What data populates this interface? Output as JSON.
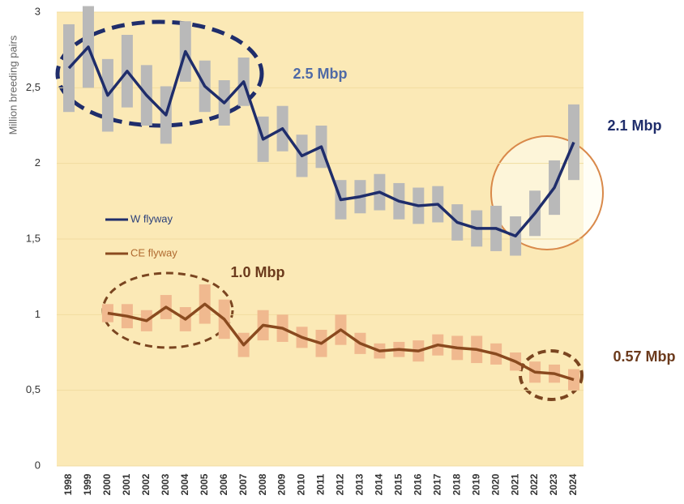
{
  "chart_data": {
    "type": "line",
    "y_axis_label": "Million breeding pairs",
    "categories": [
      "1998",
      "1999",
      "2000",
      "2001",
      "2002",
      "2003",
      "2004",
      "2005",
      "2006",
      "2007",
      "2008",
      "2009",
      "2010",
      "2011",
      "2012",
      "2013",
      "2014",
      "2015",
      "2016",
      "2017",
      "2018",
      "2019",
      "2020",
      "2021",
      "2022",
      "2023",
      "2024"
    ],
    "ylim": [
      0,
      3
    ],
    "yticks": [
      {
        "value": 0,
        "label": "0"
      },
      {
        "value": 0.5,
        "label": "0,5"
      },
      {
        "value": 1,
        "label": "1"
      },
      {
        "value": 1.5,
        "label": "1,5"
      },
      {
        "value": 2,
        "label": "2"
      },
      {
        "value": 2.5,
        "label": "2,5"
      },
      {
        "value": 3,
        "label": "3"
      }
    ],
    "grid": true,
    "series": [
      {
        "name": "W flyway",
        "color": "#1f2d6b",
        "error_color": "#b9b9b9",
        "values": [
          2.63,
          2.77,
          2.45,
          2.61,
          2.45,
          2.32,
          2.74,
          2.51,
          2.4,
          2.54,
          2.16,
          2.23,
          2.05,
          2.11,
          1.76,
          1.78,
          1.81,
          1.75,
          1.72,
          1.73,
          1.61,
          1.57,
          1.57,
          1.52,
          1.67,
          1.84,
          2.14
        ],
        "errors": [
          0.29,
          0.27,
          0.24,
          0.24,
          0.2,
          0.19,
          0.2,
          0.17,
          0.15,
          0.16,
          0.15,
          0.15,
          0.14,
          0.14,
          0.13,
          0.11,
          0.12,
          0.12,
          0.12,
          0.12,
          0.12,
          0.12,
          0.15,
          0.13,
          0.15,
          0.18,
          0.25
        ]
      },
      {
        "name": "CE flyway",
        "color": "#8a4a1f",
        "error_color": "#f0b98f",
        "values": [
          null,
          null,
          1.01,
          0.99,
          0.96,
          1.05,
          0.97,
          1.07,
          0.97,
          0.8,
          0.93,
          0.91,
          0.85,
          0.81,
          0.9,
          0.81,
          0.76,
          0.77,
          0.76,
          0.8,
          0.78,
          0.77,
          0.74,
          0.69,
          0.62,
          0.61,
          0.57
        ],
        "errors": [
          null,
          null,
          0.06,
          0.08,
          0.07,
          0.08,
          0.08,
          0.13,
          0.13,
          0.08,
          0.1,
          0.09,
          0.07,
          0.09,
          0.1,
          0.07,
          0.05,
          0.05,
          0.07,
          0.07,
          0.08,
          0.09,
          0.07,
          0.06,
          0.07,
          0.06,
          0.07
        ]
      }
    ],
    "annotations": [
      {
        "text": "2.5 Mbp",
        "color": "#4f6aa6"
      },
      {
        "text": "2.1 Mbp",
        "color": "#1f2d6b"
      },
      {
        "text": "1.0 Mbp",
        "color": "#6b3a1c"
      },
      {
        "text": "0.57 Mbp",
        "color": "#6b3a1c"
      }
    ]
  }
}
